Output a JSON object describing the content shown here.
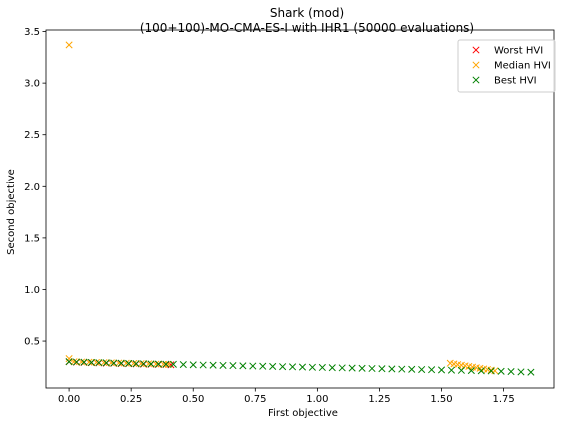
{
  "chart_data": {
    "type": "scatter",
    "title": [
      "Shark (mod)",
      "(100+100)-MO-CMA-ES-I with IHR1 (50000 evaluations)"
    ],
    "xlabel": "First objective",
    "ylabel": "Second objective",
    "xlim": [
      -0.093,
      1.953
    ],
    "ylim": [
      0.045,
      3.515
    ],
    "xticks": [
      0.0,
      0.25,
      0.5,
      0.75,
      1.0,
      1.25,
      1.5,
      1.75
    ],
    "xtick_labels": [
      "0.00",
      "0.25",
      "0.50",
      "0.75",
      "1.00",
      "1.25",
      "1.50",
      "1.75"
    ],
    "yticks": [
      0.5,
      1.0,
      1.5,
      2.0,
      2.5,
      3.0,
      3.5
    ],
    "ytick_labels": [
      "0.5",
      "1.0",
      "1.5",
      "2.0",
      "2.5",
      "3.0",
      "3.5"
    ],
    "grid": false,
    "legend_position": "top-right",
    "marker": "x",
    "series": [
      {
        "name": "Worst HVI",
        "color": "#ff0000",
        "points": [
          [
            0.0,
            0.3
          ],
          [
            0.03,
            0.295
          ],
          [
            0.06,
            0.293
          ],
          [
            0.09,
            0.29
          ],
          [
            0.12,
            0.288
          ],
          [
            0.15,
            0.286
          ],
          [
            0.18,
            0.284
          ],
          [
            0.21,
            0.282
          ],
          [
            0.24,
            0.28
          ],
          [
            0.27,
            0.278
          ],
          [
            0.3,
            0.276
          ],
          [
            0.33,
            0.275
          ],
          [
            0.36,
            0.273
          ],
          [
            0.39,
            0.272
          ],
          [
            0.41,
            0.27
          ]
        ]
      },
      {
        "name": "Median HVI",
        "color": "#ffa500",
        "points": [
          [
            0.0,
            3.37
          ],
          [
            0.0,
            0.33
          ],
          [
            0.02,
            0.3
          ],
          [
            0.05,
            0.297
          ],
          [
            0.08,
            0.295
          ],
          [
            0.11,
            0.293
          ],
          [
            0.14,
            0.291
          ],
          [
            0.17,
            0.289
          ],
          [
            0.2,
            0.287
          ],
          [
            0.23,
            0.285
          ],
          [
            0.26,
            0.283
          ],
          [
            0.29,
            0.281
          ],
          [
            0.32,
            0.279
          ],
          [
            0.35,
            0.277
          ],
          [
            0.38,
            0.275
          ],
          [
            0.4,
            0.273
          ],
          [
            1.535,
            0.285
          ],
          [
            1.55,
            0.278
          ],
          [
            1.565,
            0.272
          ],
          [
            1.58,
            0.266
          ],
          [
            1.595,
            0.26
          ],
          [
            1.61,
            0.254
          ],
          [
            1.625,
            0.248
          ],
          [
            1.64,
            0.242
          ],
          [
            1.655,
            0.236
          ],
          [
            1.67,
            0.23
          ],
          [
            1.685,
            0.224
          ],
          [
            1.7,
            0.218
          ],
          [
            1.715,
            0.212
          ]
        ]
      },
      {
        "name": "Best HVI",
        "color": "#008000",
        "points": [
          [
            0.0,
            0.3
          ],
          [
            0.03,
            0.297
          ],
          [
            0.06,
            0.295
          ],
          [
            0.09,
            0.293
          ],
          [
            0.12,
            0.291
          ],
          [
            0.15,
            0.289
          ],
          [
            0.18,
            0.287
          ],
          [
            0.21,
            0.285
          ],
          [
            0.24,
            0.283
          ],
          [
            0.27,
            0.281
          ],
          [
            0.3,
            0.28
          ],
          [
            0.33,
            0.278
          ],
          [
            0.36,
            0.277
          ],
          [
            0.39,
            0.276
          ],
          [
            0.42,
            0.275
          ],
          [
            0.46,
            0.272
          ],
          [
            0.5,
            0.27
          ],
          [
            0.54,
            0.268
          ],
          [
            0.58,
            0.266
          ],
          [
            0.62,
            0.264
          ],
          [
            0.66,
            0.262
          ],
          [
            0.7,
            0.26
          ],
          [
            0.74,
            0.258
          ],
          [
            0.78,
            0.256
          ],
          [
            0.82,
            0.254
          ],
          [
            0.86,
            0.252
          ],
          [
            0.9,
            0.25
          ],
          [
            0.94,
            0.248
          ],
          [
            0.98,
            0.246
          ],
          [
            1.02,
            0.244
          ],
          [
            1.06,
            0.242
          ],
          [
            1.1,
            0.24
          ],
          [
            1.14,
            0.238
          ],
          [
            1.18,
            0.236
          ],
          [
            1.22,
            0.234
          ],
          [
            1.26,
            0.232
          ],
          [
            1.3,
            0.23
          ],
          [
            1.34,
            0.228
          ],
          [
            1.38,
            0.226
          ],
          [
            1.42,
            0.224
          ],
          [
            1.46,
            0.222
          ],
          [
            1.5,
            0.22
          ],
          [
            1.54,
            0.218
          ],
          [
            1.58,
            0.216
          ],
          [
            1.62,
            0.214
          ],
          [
            1.66,
            0.212
          ],
          [
            1.7,
            0.21
          ],
          [
            1.74,
            0.207
          ],
          [
            1.78,
            0.204
          ],
          [
            1.82,
            0.201
          ],
          [
            1.86,
            0.198
          ]
        ]
      }
    ]
  }
}
